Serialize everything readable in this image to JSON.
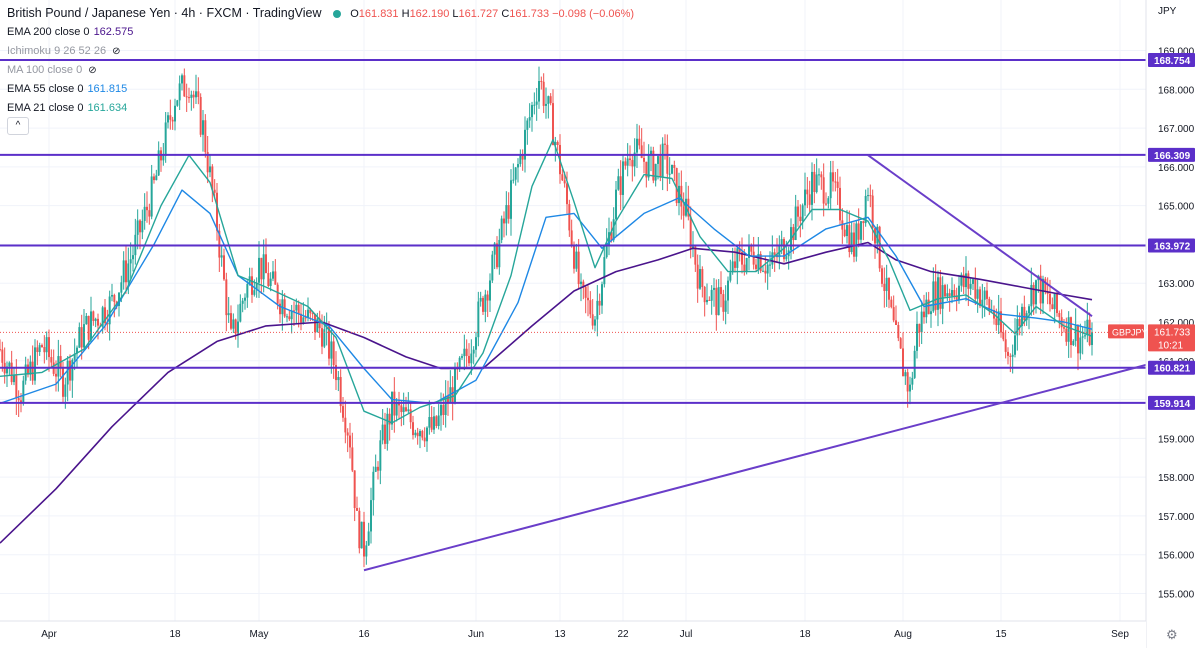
{
  "header": {
    "symbol": "British Pound / Japanese Yen · 4h · FXCM · TradingView",
    "o_label": "O",
    "o": "161.831",
    "h_label": "H",
    "h": "162.190",
    "l_label": "L",
    "l": "161.727",
    "c_label": "C",
    "c": "161.733",
    "change": "−0.098 (−0.06%)",
    "currency": "JPY",
    "collapse_glyph": "^",
    "gear_glyph": "⚙"
  },
  "indicators": [
    {
      "label": "EMA 200 close 0",
      "value": "162.575",
      "color": "#4a148c"
    },
    {
      "label": "Ichimoku 9 26 52 26",
      "value": "",
      "color": "#9598a1",
      "hidden": true
    },
    {
      "label": "MA 100 close 0",
      "value": "",
      "color": "#9598a1",
      "hidden": true
    },
    {
      "label": "EMA 55 close 0",
      "value": "161.815",
      "color": "#1e88e5"
    },
    {
      "label": "EMA 21 close 0",
      "value": "161.634",
      "color": "#26a69a"
    }
  ],
  "chart_data": {
    "type": "candlestick",
    "y_ticks": [
      "169.000",
      "168.000",
      "167.000",
      "166.000",
      "165.000",
      "164.000",
      "163.000",
      "162.000",
      "161.000",
      "160.000",
      "159.000",
      "158.000",
      "157.000",
      "156.000",
      "155.000"
    ],
    "ylim": [
      154.4,
      169.7
    ],
    "x_ticks": [
      {
        "label": "Apr",
        "day": 7
      },
      {
        "label": "18",
        "day": 25
      },
      {
        "label": "May",
        "day": 37
      },
      {
        "label": "16",
        "day": 52
      },
      {
        "label": "Jun",
        "day": 68
      },
      {
        "label": "13",
        "day": 80
      },
      {
        "label": "22",
        "day": 89
      },
      {
        "label": "Jul",
        "day": 98
      },
      {
        "label": "18",
        "day": 115
      },
      {
        "label": "Aug",
        "day": 129
      },
      {
        "label": "15",
        "day": 143
      },
      {
        "label": "Sep",
        "day": 160
      }
    ],
    "xlim_days": [
      0,
      172
    ],
    "horizontal_levels": [
      {
        "value": 168.754,
        "label": "168.754"
      },
      {
        "value": 166.309,
        "label": "166.309"
      },
      {
        "value": 163.972,
        "label": "163.972"
      },
      {
        "value": 160.821,
        "label": "160.821"
      },
      {
        "value": 159.914,
        "label": "159.914"
      }
    ],
    "trendlines": [
      {
        "from": {
          "day": 52,
          "price": 155.6
        },
        "to": {
          "day": 167,
          "price": 161.05
        }
      },
      {
        "from": {
          "day": 124,
          "price": 166.3
        },
        "to": {
          "day": 156,
          "price": 162.15
        }
      }
    ],
    "last_price": {
      "value": 161.733,
      "symbol": "GBPJPY",
      "label": "161.733",
      "countdown": "10:21"
    },
    "price_path": [
      {
        "day": 0,
        "price": 161.3
      },
      {
        "day": 3,
        "price": 160.2
      },
      {
        "day": 6,
        "price": 161.4
      },
      {
        "day": 9,
        "price": 160.5
      },
      {
        "day": 12,
        "price": 161.8
      },
      {
        "day": 16,
        "price": 162.5
      },
      {
        "day": 19,
        "price": 163.8
      },
      {
        "day": 22,
        "price": 165.5
      },
      {
        "day": 25,
        "price": 167.8
      },
      {
        "day": 27,
        "price": 168.2
      },
      {
        "day": 29,
        "price": 167.0
      },
      {
        "day": 31,
        "price": 164.5
      },
      {
        "day": 33,
        "price": 161.5
      },
      {
        "day": 35,
        "price": 162.8
      },
      {
        "day": 37,
        "price": 163.5
      },
      {
        "day": 40,
        "price": 162.6
      },
      {
        "day": 43,
        "price": 162.2
      },
      {
        "day": 46,
        "price": 161.8
      },
      {
        "day": 48,
        "price": 160.8
      },
      {
        "day": 50,
        "price": 159.0
      },
      {
        "day": 51,
        "price": 156.8
      },
      {
        "day": 52,
        "price": 156.2
      },
      {
        "day": 54,
        "price": 158.5
      },
      {
        "day": 56,
        "price": 159.8
      },
      {
        "day": 59,
        "price": 159.4
      },
      {
        "day": 62,
        "price": 159.2
      },
      {
        "day": 65,
        "price": 160.4
      },
      {
        "day": 67,
        "price": 161.3
      },
      {
        "day": 69,
        "price": 162.6
      },
      {
        "day": 71,
        "price": 163.8
      },
      {
        "day": 74,
        "price": 166.0
      },
      {
        "day": 77,
        "price": 168.3
      },
      {
        "day": 79,
        "price": 167.0
      },
      {
        "day": 81,
        "price": 165.0
      },
      {
        "day": 83,
        "price": 162.6
      },
      {
        "day": 85,
        "price": 162.2
      },
      {
        "day": 88,
        "price": 165.2
      },
      {
        "day": 90,
        "price": 166.5
      },
      {
        "day": 93,
        "price": 166.0
      },
      {
        "day": 95,
        "price": 166.2
      },
      {
        "day": 98,
        "price": 164.8
      },
      {
        "day": 100,
        "price": 163.0
      },
      {
        "day": 103,
        "price": 162.4
      },
      {
        "day": 105,
        "price": 163.5
      },
      {
        "day": 108,
        "price": 163.8
      },
      {
        "day": 110,
        "price": 163.4
      },
      {
        "day": 113,
        "price": 164.3
      },
      {
        "day": 116,
        "price": 165.6
      },
      {
        "day": 119,
        "price": 165.4
      },
      {
        "day": 122,
        "price": 163.9
      },
      {
        "day": 124,
        "price": 165.5
      },
      {
        "day": 126,
        "price": 163.3
      },
      {
        "day": 128,
        "price": 161.5
      },
      {
        "day": 130,
        "price": 160.2
      },
      {
        "day": 131,
        "price": 161.8
      },
      {
        "day": 133,
        "price": 162.7
      },
      {
        "day": 136,
        "price": 162.9
      },
      {
        "day": 139,
        "price": 163.0
      },
      {
        "day": 142,
        "price": 162.2
      },
      {
        "day": 144,
        "price": 161.1
      },
      {
        "day": 146,
        "price": 162.3
      },
      {
        "day": 148,
        "price": 163.0
      },
      {
        "day": 151,
        "price": 162.2
      },
      {
        "day": 154,
        "price": 161.6
      },
      {
        "day": 156,
        "price": 161.7
      }
    ],
    "ema21": [
      {
        "day": 0,
        "price": 160.6
      },
      {
        "day": 6,
        "price": 160.7
      },
      {
        "day": 12,
        "price": 161.3
      },
      {
        "day": 18,
        "price": 162.8
      },
      {
        "day": 23,
        "price": 165.0
      },
      {
        "day": 27,
        "price": 166.3
      },
      {
        "day": 30,
        "price": 165.6
      },
      {
        "day": 34,
        "price": 163.2
      },
      {
        "day": 38,
        "price": 162.9
      },
      {
        "day": 44,
        "price": 162.4
      },
      {
        "day": 48,
        "price": 161.6
      },
      {
        "day": 52,
        "price": 159.7
      },
      {
        "day": 56,
        "price": 159.4
      },
      {
        "day": 60,
        "price": 159.8
      },
      {
        "day": 65,
        "price": 160.1
      },
      {
        "day": 69,
        "price": 161.2
      },
      {
        "day": 73,
        "price": 163.2
      },
      {
        "day": 76,
        "price": 165.5
      },
      {
        "day": 79,
        "price": 166.7
      },
      {
        "day": 82,
        "price": 165.1
      },
      {
        "day": 85,
        "price": 163.4
      },
      {
        "day": 88,
        "price": 164.6
      },
      {
        "day": 92,
        "price": 165.8
      },
      {
        "day": 96,
        "price": 165.7
      },
      {
        "day": 100,
        "price": 164.2
      },
      {
        "day": 104,
        "price": 163.3
      },
      {
        "day": 108,
        "price": 163.3
      },
      {
        "day": 112,
        "price": 163.9
      },
      {
        "day": 116,
        "price": 164.9
      },
      {
        "day": 120,
        "price": 164.9
      },
      {
        "day": 124,
        "price": 164.6
      },
      {
        "day": 127,
        "price": 163.6
      },
      {
        "day": 130,
        "price": 162.3
      },
      {
        "day": 134,
        "price": 162.6
      },
      {
        "day": 138,
        "price": 162.7
      },
      {
        "day": 142,
        "price": 162.2
      },
      {
        "day": 145,
        "price": 161.7
      },
      {
        "day": 148,
        "price": 162.4
      },
      {
        "day": 152,
        "price": 161.9
      },
      {
        "day": 156,
        "price": 161.634
      }
    ],
    "ema55": [
      {
        "day": 0,
        "price": 159.9
      },
      {
        "day": 8,
        "price": 160.4
      },
      {
        "day": 15,
        "price": 161.9
      },
      {
        "day": 22,
        "price": 164.0
      },
      {
        "day": 26,
        "price": 165.4
      },
      {
        "day": 30,
        "price": 164.8
      },
      {
        "day": 34,
        "price": 163.2
      },
      {
        "day": 40,
        "price": 162.4
      },
      {
        "day": 47,
        "price": 161.9
      },
      {
        "day": 52,
        "price": 160.8
      },
      {
        "day": 56,
        "price": 160.0
      },
      {
        "day": 62,
        "price": 159.9
      },
      {
        "day": 68,
        "price": 160.5
      },
      {
        "day": 74,
        "price": 162.5
      },
      {
        "day": 78,
        "price": 164.7
      },
      {
        "day": 82,
        "price": 164.8
      },
      {
        "day": 86,
        "price": 163.9
      },
      {
        "day": 92,
        "price": 164.8
      },
      {
        "day": 97,
        "price": 165.2
      },
      {
        "day": 102,
        "price": 164.4
      },
      {
        "day": 107,
        "price": 163.7
      },
      {
        "day": 112,
        "price": 163.7
      },
      {
        "day": 118,
        "price": 164.4
      },
      {
        "day": 124,
        "price": 164.7
      },
      {
        "day": 128,
        "price": 163.7
      },
      {
        "day": 132,
        "price": 162.4
      },
      {
        "day": 138,
        "price": 162.6
      },
      {
        "day": 143,
        "price": 162.2
      },
      {
        "day": 148,
        "price": 162.1
      },
      {
        "day": 152,
        "price": 162.0
      },
      {
        "day": 156,
        "price": 161.815
      }
    ],
    "ema200": [
      {
        "day": 0,
        "price": 156.3
      },
      {
        "day": 8,
        "price": 157.7
      },
      {
        "day": 16,
        "price": 159.3
      },
      {
        "day": 24,
        "price": 160.7
      },
      {
        "day": 31,
        "price": 161.5
      },
      {
        "day": 38,
        "price": 161.9
      },
      {
        "day": 46,
        "price": 162.0
      },
      {
        "day": 52,
        "price": 161.6
      },
      {
        "day": 58,
        "price": 161.1
      },
      {
        "day": 63,
        "price": 160.8
      },
      {
        "day": 69,
        "price": 160.8
      },
      {
        "day": 76,
        "price": 161.9
      },
      {
        "day": 82,
        "price": 162.8
      },
      {
        "day": 88,
        "price": 163.3
      },
      {
        "day": 94,
        "price": 163.6
      },
      {
        "day": 99,
        "price": 163.9
      },
      {
        "day": 105,
        "price": 163.8
      },
      {
        "day": 112,
        "price": 163.5
      },
      {
        "day": 118,
        "price": 163.8
      },
      {
        "day": 124,
        "price": 164.05
      },
      {
        "day": 128,
        "price": 163.6
      },
      {
        "day": 133,
        "price": 163.3
      },
      {
        "day": 140,
        "price": 163.1
      },
      {
        "day": 146,
        "price": 162.9
      },
      {
        "day": 152,
        "price": 162.7
      },
      {
        "day": 156,
        "price": 162.575
      }
    ],
    "candles_per_day": 3,
    "colors": {
      "up": "#26a69a",
      "down": "#ef5350",
      "ema21": "#26a69a",
      "ema55": "#1e88e5",
      "ema200": "#4a148c",
      "levels": "#5b2fc9",
      "trend": "#6a3ec9",
      "last_price": "#ef5350",
      "grid": "#f0f3fa",
      "axis_text": "#131722"
    }
  }
}
